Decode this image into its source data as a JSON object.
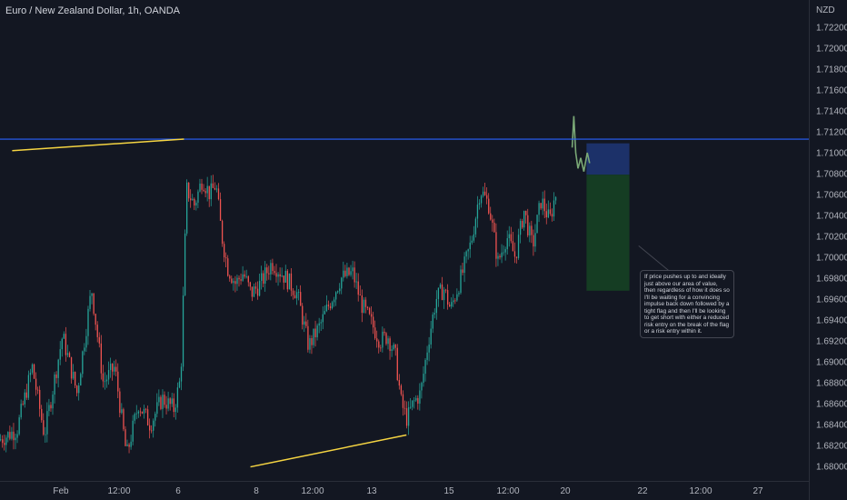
{
  "chart_data": {
    "type": "candlestick",
    "title": "Euro / New Zealand Dollar, 1h, OANDA",
    "currency": "NZD",
    "ylim": [
      1.6785,
      1.7245
    ],
    "y_ticks": [
      "1.72200",
      "1.72000",
      "1.71800",
      "1.71600",
      "1.71400",
      "1.71200",
      "1.71000",
      "1.70800",
      "1.70600",
      "1.70400",
      "1.70200",
      "1.70000",
      "1.69800",
      "1.69600",
      "1.69400",
      "1.69200",
      "1.69000",
      "1.68800",
      "1.68600",
      "1.68400",
      "1.68200",
      "1.68000"
    ],
    "x_ticks": [
      {
        "label": "Feb",
        "at": 1
      },
      {
        "label": "12:00",
        "at": 2
      },
      {
        "label": "6",
        "at": 3
      },
      {
        "label": "8",
        "at": 5
      },
      {
        "label": "12:00",
        "at": 6
      },
      {
        "label": "13",
        "at": 7
      },
      {
        "label": "15",
        "at": 9
      },
      {
        "label": "12:00",
        "at": 10
      },
      {
        "label": "20",
        "at": 11
      },
      {
        "label": "22",
        "at": 13
      },
      {
        "label": "12:00",
        "at": 14
      },
      {
        "label": "27",
        "at": 15
      }
    ],
    "x_range": [
      0.2,
      15.8
    ],
    "price_path": [
      [
        0,
        1.6825
      ],
      [
        0.3,
        1.6835
      ],
      [
        0.55,
        1.6895
      ],
      [
        0.75,
        1.683
      ],
      [
        1.05,
        1.6925
      ],
      [
        1.3,
        1.687
      ],
      [
        1.55,
        1.697
      ],
      [
        1.75,
        1.688
      ],
      [
        1.95,
        1.6895
      ],
      [
        2.15,
        1.681
      ],
      [
        2.35,
        1.686
      ],
      [
        2.55,
        1.684
      ],
      [
        2.75,
        1.6865
      ],
      [
        2.95,
        1.6855
      ],
      [
        3.1,
        1.6885
      ],
      [
        3.25,
        1.7065
      ],
      [
        3.45,
        1.705
      ],
      [
        3.65,
        1.7075
      ],
      [
        3.85,
        1.706
      ],
      [
        4.0,
        1.707
      ],
      [
        4.15,
        1.702
      ],
      [
        4.3,
        1.699
      ],
      [
        4.5,
        1.6975
      ],
      [
        4.7,
        1.6985
      ],
      [
        4.9,
        1.6965
      ],
      [
        5.1,
        1.6975
      ],
      [
        5.3,
        1.6995
      ],
      [
        5.55,
        1.698
      ],
      [
        5.75,
        1.6965
      ],
      [
        5.95,
        1.6915
      ],
      [
        6.15,
        1.6935
      ],
      [
        6.3,
        1.6955
      ],
      [
        6.5,
        1.698
      ],
      [
        6.7,
        1.6985
      ],
      [
        6.85,
        1.6955
      ],
      [
        7.05,
        1.6935
      ],
      [
        7.25,
        1.692
      ],
      [
        7.45,
        1.6925
      ],
      [
        7.65,
        1.6905
      ],
      [
        7.8,
        1.686
      ],
      [
        7.95,
        1.6845
      ],
      [
        8.1,
        1.686
      ],
      [
        8.3,
        1.687
      ],
      [
        8.5,
        1.692
      ],
      [
        8.7,
        1.696
      ],
      [
        8.9,
        1.697
      ],
      [
        9.05,
        1.695
      ],
      [
        9.25,
        1.6985
      ],
      [
        9.4,
        1.7015
      ],
      [
        9.55,
        1.7065
      ],
      [
        9.7,
        1.705
      ],
      [
        9.85,
        1.6995
      ],
      [
        10.0,
        1.702
      ],
      [
        10.15,
        1.7
      ],
      [
        10.3,
        1.7045
      ],
      [
        10.45,
        1.701
      ],
      [
        10.6,
        1.7055
      ],
      [
        10.75,
        1.7035
      ],
      [
        10.85,
        1.706
      ]
    ],
    "post_path": [
      [
        11.18,
        1.7105
      ],
      [
        11.22,
        1.7135
      ],
      [
        11.27,
        1.71
      ],
      [
        11.33,
        1.7085
      ],
      [
        11.4,
        1.7095
      ],
      [
        11.48,
        1.7082
      ],
      [
        11.57,
        1.71
      ],
      [
        11.63,
        1.709
      ]
    ],
    "key_level": 1.7113,
    "trendlines": [
      {
        "from": [
          0.2,
          1.7102
        ],
        "to": [
          3.15,
          1.7113
        ],
        "color": "#f5d442"
      },
      {
        "from": [
          4.85,
          1.67995
        ],
        "to": [
          7.9,
          1.683
        ],
        "color": "#f5d442"
      }
    ],
    "position": {
      "x_start": 11.55,
      "x_end": 12.66,
      "stop": 1.7109,
      "entry": 1.7079,
      "target": 1.6968
    },
    "annotation_arrow": {
      "from": [
        12.9,
        1.7011
      ],
      "to": [
        13.5,
        1.6985
      ]
    },
    "colors": {
      "background": "#131722",
      "bull": "#26a69a",
      "bear": "#ef5350",
      "key_level": "#2962ff",
      "stop_zone": "#1c3169",
      "target_zone": "#153d23",
      "post_line": "#7aa876"
    }
  },
  "annotation": {
    "text": "If price pushes up to and ideally just above our area of value, then regardless of how it does so I'll be waiting for a convincing impulse back down followed by a tight flag and then I'll be looking to get short with either a reduced risk entry on the break of the flag or a risk entry within it."
  }
}
